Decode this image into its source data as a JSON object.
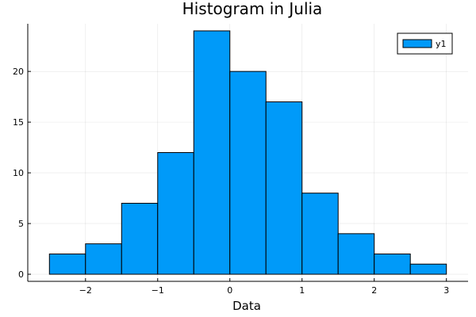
{
  "chart_data": {
    "type": "bar",
    "title": "Histogram in Julia",
    "xlabel": "Data",
    "ylabel": "",
    "bin_edges": [
      -2.5,
      -2.0,
      -1.5,
      -1.0,
      -0.5,
      0.0,
      0.5,
      1.0,
      1.5,
      2.0,
      2.5,
      3.0
    ],
    "series": [
      {
        "name": "y1",
        "values": [
          2,
          3,
          7,
          12,
          24,
          20,
          17,
          8,
          4,
          2,
          1
        ]
      }
    ],
    "xlim": [
      -2.8,
      3.3
    ],
    "ylim": [
      -0.7,
      24.7
    ],
    "xticks": [
      -2,
      -1,
      0,
      1,
      2,
      3
    ],
    "xtick_labels": [
      "−2",
      "−1",
      "0",
      "1",
      "2",
      "3"
    ],
    "yticks": [
      0,
      5,
      10,
      15,
      20
    ],
    "ytick_labels": [
      "0",
      "5",
      "10",
      "15",
      "20"
    ],
    "grid": true,
    "legend_position": "top-right",
    "colors": {
      "bar": "#009af9",
      "edge": "#000000"
    }
  }
}
